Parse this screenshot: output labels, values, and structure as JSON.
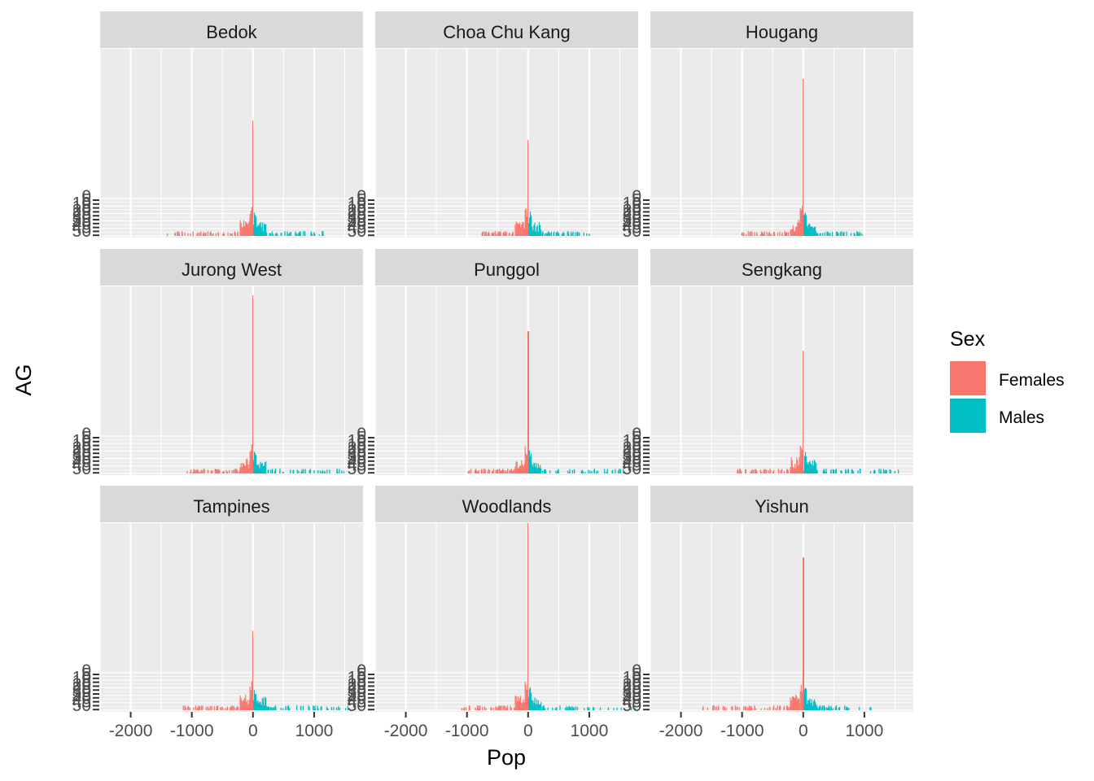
{
  "chart_data": {
    "type": "bar",
    "subtype": "faceted population pyramid",
    "xlabel": "Pop",
    "ylabel": "AG",
    "xlim": [
      -2500,
      1800
    ],
    "x_ticks": [
      -2000,
      -1000,
      0,
      1000
    ],
    "x_tick_labels": [
      "-2000",
      "-1000",
      "0",
      "1000"
    ],
    "grid": true,
    "legend": {
      "title": "Sex",
      "position": "right",
      "items": [
        {
          "label": "Females",
          "color": "#F8766D"
        },
        {
          "label": "Males",
          "color": "#00BFC4"
        }
      ]
    },
    "colors": {
      "Females": "#F8766D",
      "Males": "#00BFC4",
      "panel_bg": "#EBEBEB",
      "strip_bg": "#D9D9D9"
    },
    "facets": [
      {
        "name": "Bedok",
        "spike_females": 0.77,
        "spike_males": 0.02,
        "female_max": -1400,
        "male_max": 1150,
        "female_hump": 0.1,
        "male_hump": 0.05
      },
      {
        "name": "Choa Chu Kang",
        "spike_females": 0.64,
        "spike_males": 0.02,
        "female_max": -800,
        "male_max": 1000,
        "female_hump": 0.08,
        "male_hump": 0.06
      },
      {
        "name": "Hougang",
        "spike_females": 1.05,
        "spike_males": 0.02,
        "female_max": -1000,
        "male_max": 1000,
        "female_hump": 0.14,
        "male_hump": 0.09
      },
      {
        "name": "Jurong West",
        "spike_females": 1.19,
        "spike_males": 0.09,
        "female_max": -1100,
        "male_max": 1500,
        "female_hump": 0.08,
        "male_hump": 0.04
      },
      {
        "name": "Punggol",
        "spike_females": 0.95,
        "spike_males": 0.95,
        "female_max": -1000,
        "male_max": 1550,
        "female_hump": 0.06,
        "male_hump": 0.06
      },
      {
        "name": "Sengkang",
        "spike_females": 0.82,
        "spike_males": 0.02,
        "female_max": -1100,
        "male_max": 1600,
        "female_hump": 0.05,
        "male_hump": 0.05
      },
      {
        "name": "Tampines",
        "spike_females": 0.53,
        "spike_males": 0.02,
        "female_max": -1150,
        "male_max": 1700,
        "female_hump": 0.05,
        "male_hump": 0.04
      },
      {
        "name": "Woodlands",
        "spike_females": 1.25,
        "spike_males": 0.05,
        "female_max": -1100,
        "male_max": 1750,
        "female_hump": 0.05,
        "male_hump": 0.05
      },
      {
        "name": "Yishun",
        "spike_females": 1.02,
        "spike_males": 1.02,
        "female_max": -1650,
        "male_max": 1100,
        "female_hump": 0.06,
        "male_hump": 0.05
      }
    ]
  }
}
